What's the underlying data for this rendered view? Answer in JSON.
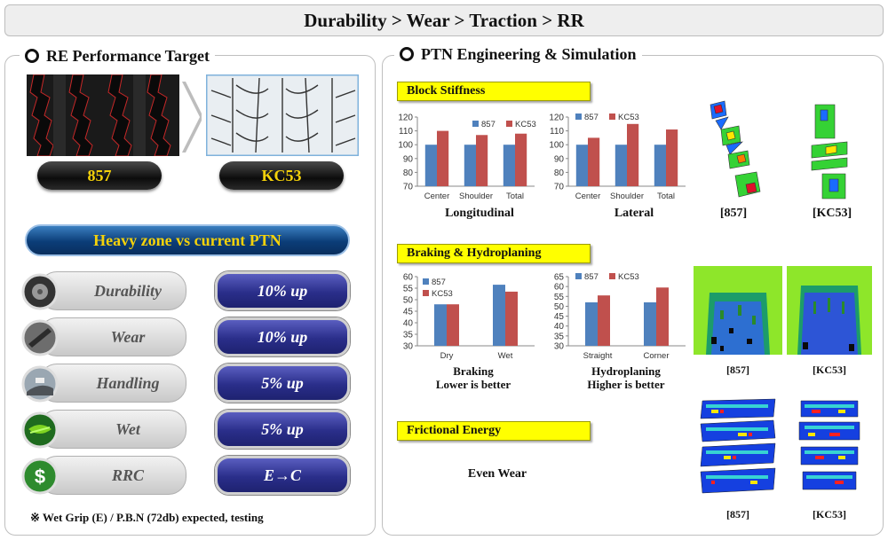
{
  "header": {
    "title": "Durability > Wear > Traction > RR"
  },
  "left": {
    "heading": "RE Performance Target",
    "tire_labels": {
      "old": "857",
      "new": "KC53"
    },
    "banner": "Heavy zone vs current PTN",
    "rows": [
      {
        "label": "Durability",
        "value": "10% up",
        "icon": "tire-icon"
      },
      {
        "label": "Wear",
        "value": "10% up",
        "icon": "wear-icon"
      },
      {
        "label": "Handling",
        "value": "5% up",
        "icon": "road-icon"
      },
      {
        "label": "Wet",
        "value": "5% up",
        "icon": "wet-icon"
      },
      {
        "label": "RRC",
        "value": "E→C",
        "icon": "dollar-icon"
      }
    ],
    "note": "※ Wet Grip (E) / P.B.N (72db) expected, testing"
  },
  "right": {
    "heading": "PTN Engineering & Simulation",
    "block_stiffness": {
      "title": "Block Stiffness",
      "captions": {
        "long": "Longitudinal",
        "lat": "Lateral"
      },
      "sim_captions": {
        "a": "[857]",
        "b": "[KC53]"
      }
    },
    "braking": {
      "title": "Braking & Hydroplaning",
      "captions": {
        "brake_1": "Braking",
        "brake_2": "Lower is better",
        "hydro_1": "Hydroplaning",
        "hydro_2": "Higher is better"
      },
      "sim_captions": {
        "a": "[857]",
        "b": "[KC53]"
      }
    },
    "friction": {
      "title": "Frictional Energy",
      "text": "Even Wear",
      "sim_captions": {
        "a": "[857]",
        "b": "[KC53]"
      }
    }
  },
  "colors": {
    "series_857": "#4f81bd",
    "series_kc53": "#c0504d",
    "yellow": "#ffff00"
  },
  "chart_data": [
    {
      "id": "long",
      "type": "bar",
      "categories": [
        "Center",
        "Shoulder",
        "Total"
      ],
      "series": [
        {
          "name": "857",
          "values": [
            100,
            100,
            100
          ]
        },
        {
          "name": "KC53",
          "values": [
            110,
            107,
            108
          ]
        }
      ],
      "ylim": [
        70,
        120
      ],
      "yticks": [
        70,
        80,
        90,
        100,
        110,
        120
      ],
      "xlabel": "Longitudinal",
      "ylabel": "",
      "legend": "top-right"
    },
    {
      "id": "lat",
      "type": "bar",
      "categories": [
        "Center",
        "Shoulder",
        "Total"
      ],
      "series": [
        {
          "name": "857",
          "values": [
            100,
            100,
            100
          ]
        },
        {
          "name": "KC53",
          "values": [
            105,
            115,
            111
          ]
        }
      ],
      "ylim": [
        70,
        120
      ],
      "yticks": [
        70,
        80,
        90,
        100,
        110,
        120
      ],
      "xlabel": "Lateral",
      "ylabel": "",
      "legend": "top"
    },
    {
      "id": "brake",
      "type": "bar",
      "categories": [
        "Dry",
        "Wet"
      ],
      "series": [
        {
          "name": "857",
          "values": [
            48,
            56.5
          ]
        },
        {
          "name": "KC53",
          "values": [
            48,
            53.5
          ]
        }
      ],
      "ylim": [
        30,
        60
      ],
      "yticks": [
        30,
        35,
        40,
        45,
        50,
        55,
        60
      ],
      "xlabel": "Braking",
      "ylabel": "",
      "legend": "top-left"
    },
    {
      "id": "hydro",
      "type": "bar",
      "categories": [
        "Straight",
        "Corner"
      ],
      "series": [
        {
          "name": "857",
          "values": [
            52,
            52
          ]
        },
        {
          "name": "KC53",
          "values": [
            55.5,
            59.5
          ]
        }
      ],
      "ylim": [
        30,
        65
      ],
      "yticks": [
        30,
        35,
        40,
        45,
        50,
        55,
        60,
        65
      ],
      "xlabel": "Hydroplaning",
      "ylabel": "",
      "legend": "top"
    }
  ]
}
